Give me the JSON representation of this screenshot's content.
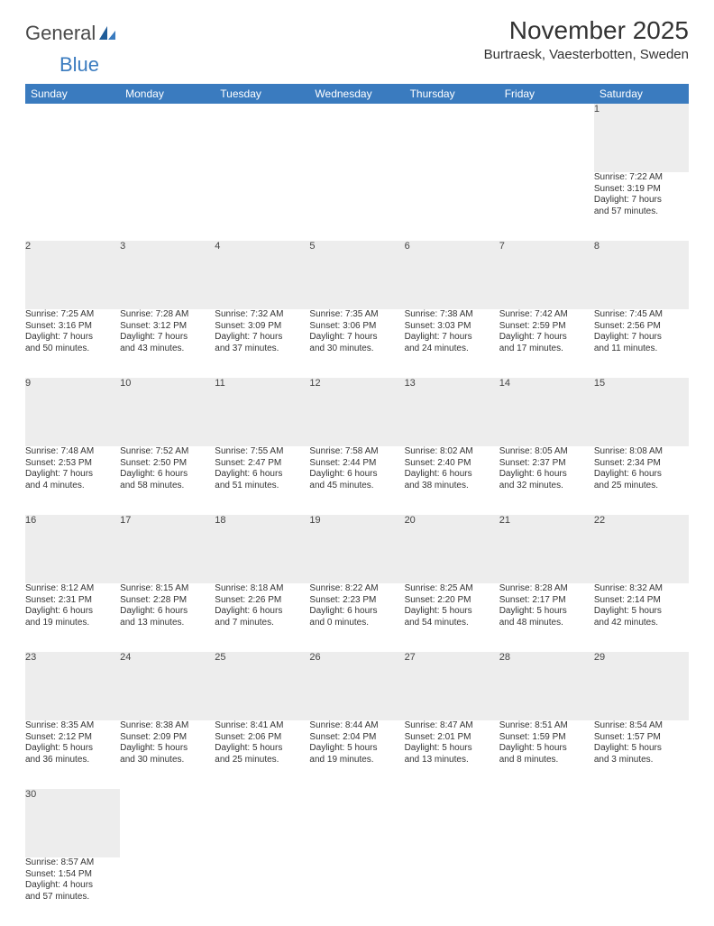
{
  "brand": {
    "part1": "General",
    "part2": "Blue"
  },
  "title": "November 2025",
  "location": "Burtraesk, Vaesterbotten, Sweden",
  "colors": {
    "header_bg": "#3a7bbf",
    "header_text": "#ffffff",
    "daynum_bg": "#ededed",
    "border": "#3a7bbf",
    "text": "#333333"
  },
  "day_names": [
    "Sunday",
    "Monday",
    "Tuesday",
    "Wednesday",
    "Thursday",
    "Friday",
    "Saturday"
  ],
  "weeks": [
    [
      null,
      null,
      null,
      null,
      null,
      null,
      {
        "n": "1",
        "sr": "Sunrise: 7:22 AM",
        "ss": "Sunset: 3:19 PM",
        "d1": "Daylight: 7 hours",
        "d2": "and 57 minutes."
      }
    ],
    [
      {
        "n": "2",
        "sr": "Sunrise: 7:25 AM",
        "ss": "Sunset: 3:16 PM",
        "d1": "Daylight: 7 hours",
        "d2": "and 50 minutes."
      },
      {
        "n": "3",
        "sr": "Sunrise: 7:28 AM",
        "ss": "Sunset: 3:12 PM",
        "d1": "Daylight: 7 hours",
        "d2": "and 43 minutes."
      },
      {
        "n": "4",
        "sr": "Sunrise: 7:32 AM",
        "ss": "Sunset: 3:09 PM",
        "d1": "Daylight: 7 hours",
        "d2": "and 37 minutes."
      },
      {
        "n": "5",
        "sr": "Sunrise: 7:35 AM",
        "ss": "Sunset: 3:06 PM",
        "d1": "Daylight: 7 hours",
        "d2": "and 30 minutes."
      },
      {
        "n": "6",
        "sr": "Sunrise: 7:38 AM",
        "ss": "Sunset: 3:03 PM",
        "d1": "Daylight: 7 hours",
        "d2": "and 24 minutes."
      },
      {
        "n": "7",
        "sr": "Sunrise: 7:42 AM",
        "ss": "Sunset: 2:59 PM",
        "d1": "Daylight: 7 hours",
        "d2": "and 17 minutes."
      },
      {
        "n": "8",
        "sr": "Sunrise: 7:45 AM",
        "ss": "Sunset: 2:56 PM",
        "d1": "Daylight: 7 hours",
        "d2": "and 11 minutes."
      }
    ],
    [
      {
        "n": "9",
        "sr": "Sunrise: 7:48 AM",
        "ss": "Sunset: 2:53 PM",
        "d1": "Daylight: 7 hours",
        "d2": "and 4 minutes."
      },
      {
        "n": "10",
        "sr": "Sunrise: 7:52 AM",
        "ss": "Sunset: 2:50 PM",
        "d1": "Daylight: 6 hours",
        "d2": "and 58 minutes."
      },
      {
        "n": "11",
        "sr": "Sunrise: 7:55 AM",
        "ss": "Sunset: 2:47 PM",
        "d1": "Daylight: 6 hours",
        "d2": "and 51 minutes."
      },
      {
        "n": "12",
        "sr": "Sunrise: 7:58 AM",
        "ss": "Sunset: 2:44 PM",
        "d1": "Daylight: 6 hours",
        "d2": "and 45 minutes."
      },
      {
        "n": "13",
        "sr": "Sunrise: 8:02 AM",
        "ss": "Sunset: 2:40 PM",
        "d1": "Daylight: 6 hours",
        "d2": "and 38 minutes."
      },
      {
        "n": "14",
        "sr": "Sunrise: 8:05 AM",
        "ss": "Sunset: 2:37 PM",
        "d1": "Daylight: 6 hours",
        "d2": "and 32 minutes."
      },
      {
        "n": "15",
        "sr": "Sunrise: 8:08 AM",
        "ss": "Sunset: 2:34 PM",
        "d1": "Daylight: 6 hours",
        "d2": "and 25 minutes."
      }
    ],
    [
      {
        "n": "16",
        "sr": "Sunrise: 8:12 AM",
        "ss": "Sunset: 2:31 PM",
        "d1": "Daylight: 6 hours",
        "d2": "and 19 minutes."
      },
      {
        "n": "17",
        "sr": "Sunrise: 8:15 AM",
        "ss": "Sunset: 2:28 PM",
        "d1": "Daylight: 6 hours",
        "d2": "and 13 minutes."
      },
      {
        "n": "18",
        "sr": "Sunrise: 8:18 AM",
        "ss": "Sunset: 2:26 PM",
        "d1": "Daylight: 6 hours",
        "d2": "and 7 minutes."
      },
      {
        "n": "19",
        "sr": "Sunrise: 8:22 AM",
        "ss": "Sunset: 2:23 PM",
        "d1": "Daylight: 6 hours",
        "d2": "and 0 minutes."
      },
      {
        "n": "20",
        "sr": "Sunrise: 8:25 AM",
        "ss": "Sunset: 2:20 PM",
        "d1": "Daylight: 5 hours",
        "d2": "and 54 minutes."
      },
      {
        "n": "21",
        "sr": "Sunrise: 8:28 AM",
        "ss": "Sunset: 2:17 PM",
        "d1": "Daylight: 5 hours",
        "d2": "and 48 minutes."
      },
      {
        "n": "22",
        "sr": "Sunrise: 8:32 AM",
        "ss": "Sunset: 2:14 PM",
        "d1": "Daylight: 5 hours",
        "d2": "and 42 minutes."
      }
    ],
    [
      {
        "n": "23",
        "sr": "Sunrise: 8:35 AM",
        "ss": "Sunset: 2:12 PM",
        "d1": "Daylight: 5 hours",
        "d2": "and 36 minutes."
      },
      {
        "n": "24",
        "sr": "Sunrise: 8:38 AM",
        "ss": "Sunset: 2:09 PM",
        "d1": "Daylight: 5 hours",
        "d2": "and 30 minutes."
      },
      {
        "n": "25",
        "sr": "Sunrise: 8:41 AM",
        "ss": "Sunset: 2:06 PM",
        "d1": "Daylight: 5 hours",
        "d2": "and 25 minutes."
      },
      {
        "n": "26",
        "sr": "Sunrise: 8:44 AM",
        "ss": "Sunset: 2:04 PM",
        "d1": "Daylight: 5 hours",
        "d2": "and 19 minutes."
      },
      {
        "n": "27",
        "sr": "Sunrise: 8:47 AM",
        "ss": "Sunset: 2:01 PM",
        "d1": "Daylight: 5 hours",
        "d2": "and 13 minutes."
      },
      {
        "n": "28",
        "sr": "Sunrise: 8:51 AM",
        "ss": "Sunset: 1:59 PM",
        "d1": "Daylight: 5 hours",
        "d2": "and 8 minutes."
      },
      {
        "n": "29",
        "sr": "Sunrise: 8:54 AM",
        "ss": "Sunset: 1:57 PM",
        "d1": "Daylight: 5 hours",
        "d2": "and 3 minutes."
      }
    ],
    [
      {
        "n": "30",
        "sr": "Sunrise: 8:57 AM",
        "ss": "Sunset: 1:54 PM",
        "d1": "Daylight: 4 hours",
        "d2": "and 57 minutes."
      },
      null,
      null,
      null,
      null,
      null,
      null
    ]
  ]
}
